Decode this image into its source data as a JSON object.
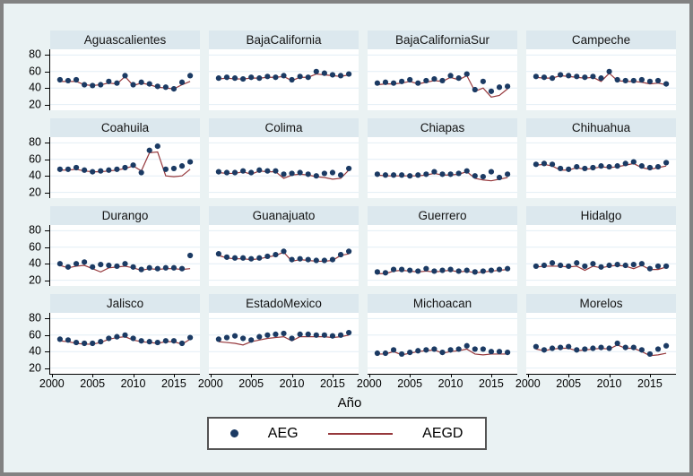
{
  "figure": {
    "xlabel": "Año",
    "legend": {
      "aeg_label": "AEG",
      "aegd_label": "AEGD"
    },
    "colors": {
      "background": "#eaf2f3",
      "title_band": "#dce8ee",
      "plot_bg": "#ffffff",
      "grid": "#e2eef5",
      "dot": "#1b3a63",
      "line": "#96383c",
      "axis": "#000000",
      "border": "#828282"
    }
  },
  "chart_data": {
    "type": "scatter",
    "layout": "4x4-small-multiples",
    "title": "",
    "xlabel": "Año",
    "ylabel": "",
    "legend": [
      "AEG",
      "AEGD"
    ],
    "legend_position": "bottom",
    "grid": true,
    "x": [
      2001,
      2002,
      2003,
      2004,
      2005,
      2006,
      2007,
      2008,
      2009,
      2010,
      2011,
      2012,
      2013,
      2014,
      2015,
      2016,
      2017
    ],
    "x_ticks": [
      2000,
      2005,
      2010,
      2015
    ],
    "y_ticks": [
      20,
      40,
      60,
      80
    ],
    "xlim": [
      1999.8,
      2018.2
    ],
    "ylim": [
      13,
      87
    ],
    "panels": [
      {
        "title": "Aguascalientes",
        "AEG": [
          50,
          49,
          50,
          44,
          43,
          44,
          48,
          46,
          55,
          44,
          47,
          45,
          42,
          41,
          39,
          47,
          55
        ],
        "AEGD": [
          48,
          48,
          48,
          44,
          43,
          44,
          46,
          45,
          54,
          43,
          46,
          44,
          41,
          40,
          39,
          44,
          48
        ]
      },
      {
        "title": "BajaCalifornia",
        "AEG": [
          52,
          53,
          52,
          51,
          53,
          52,
          54,
          53,
          55,
          50,
          54,
          53,
          60,
          58,
          56,
          55,
          57
        ],
        "AEGD": [
          51,
          52,
          51,
          51,
          52,
          52,
          53,
          53,
          54,
          49,
          53,
          53,
          57,
          56,
          55,
          54,
          56
        ]
      },
      {
        "title": "BajaCaliforniaSur",
        "AEG": [
          46,
          47,
          46,
          48,
          50,
          46,
          49,
          51,
          49,
          55,
          52,
          57,
          38,
          48,
          36,
          41,
          42
        ],
        "AEGD": [
          44,
          45,
          45,
          46,
          48,
          45,
          47,
          49,
          48,
          53,
          50,
          55,
          36,
          40,
          29,
          31,
          39
        ]
      },
      {
        "title": "Campeche",
        "AEG": [
          54,
          53,
          52,
          56,
          55,
          54,
          53,
          54,
          52,
          60,
          50,
          49,
          49,
          50,
          48,
          49,
          45
        ],
        "AEGD": [
          53,
          52,
          52,
          55,
          54,
          53,
          52,
          53,
          48,
          58,
          49,
          48,
          48,
          47,
          45,
          46,
          44
        ]
      },
      {
        "title": "Coahuila",
        "AEG": [
          48,
          48,
          50,
          47,
          45,
          46,
          47,
          48,
          50,
          53,
          44,
          71,
          76,
          48,
          49,
          52,
          57
        ],
        "AEGD": [
          47,
          47,
          48,
          46,
          45,
          45,
          46,
          47,
          49,
          52,
          46,
          68,
          69,
          40,
          39,
          40,
          48
        ]
      },
      {
        "title": "Colima",
        "AEG": [
          45,
          44,
          44,
          46,
          44,
          47,
          46,
          46,
          42,
          43,
          44,
          42,
          40,
          43,
          44,
          41,
          49
        ],
        "AEGD": [
          44,
          43,
          43,
          45,
          42,
          46,
          45,
          45,
          37,
          41,
          42,
          41,
          39,
          38,
          36,
          37,
          47
        ]
      },
      {
        "title": "Chiapas",
        "AEG": [
          42,
          41,
          41,
          41,
          40,
          41,
          42,
          45,
          42,
          42,
          43,
          46,
          40,
          39,
          45,
          38,
          42
        ],
        "AEGD": [
          41,
          40,
          40,
          40,
          40,
          40,
          41,
          43,
          41,
          41,
          42,
          45,
          37,
          35,
          34,
          36,
          38
        ]
      },
      {
        "title": "Chihuahua",
        "AEG": [
          54,
          55,
          54,
          49,
          48,
          51,
          49,
          50,
          52,
          51,
          52,
          55,
          57,
          52,
          50,
          51,
          56
        ],
        "AEGD": [
          53,
          54,
          52,
          47,
          47,
          50,
          48,
          49,
          51,
          50,
          51,
          53,
          55,
          50,
          48,
          50,
          52
        ]
      },
      {
        "title": "Durango",
        "AEG": [
          40,
          36,
          40,
          42,
          36,
          39,
          38,
          37,
          40,
          36,
          33,
          35,
          34,
          35,
          35,
          34,
          50
        ],
        "AEGD": [
          38,
          35,
          37,
          38,
          34,
          30,
          35,
          36,
          37,
          35,
          32,
          34,
          33,
          34,
          34,
          33,
          34
        ]
      },
      {
        "title": "Guanajuato",
        "AEG": [
          52,
          48,
          47,
          47,
          46,
          47,
          49,
          51,
          55,
          45,
          46,
          45,
          44,
          44,
          45,
          51,
          55
        ],
        "AEGD": [
          50,
          47,
          46,
          46,
          45,
          46,
          48,
          50,
          54,
          43,
          45,
          44,
          43,
          43,
          44,
          50,
          52
        ]
      },
      {
        "title": "Guerrero",
        "AEG": [
          30,
          29,
          33,
          33,
          32,
          31,
          34,
          31,
          32,
          33,
          31,
          32,
          30,
          31,
          32,
          33,
          34
        ],
        "AEGD": [
          28,
          28,
          31,
          32,
          31,
          30,
          31,
          30,
          31,
          32,
          30,
          31,
          29,
          30,
          31,
          32,
          33
        ]
      },
      {
        "title": "Hidalgo",
        "AEG": [
          37,
          38,
          41,
          38,
          37,
          41,
          37,
          40,
          36,
          38,
          39,
          38,
          39,
          40,
          34,
          37,
          37
        ],
        "AEGD": [
          36,
          37,
          37,
          37,
          36,
          37,
          32,
          37,
          35,
          37,
          38,
          37,
          34,
          38,
          33,
          33,
          36
        ]
      },
      {
        "title": "Jalisco",
        "AEG": [
          55,
          54,
          51,
          50,
          50,
          52,
          56,
          58,
          60,
          56,
          53,
          52,
          51,
          53,
          53,
          50,
          57
        ],
        "AEGD": [
          53,
          52,
          50,
          49,
          49,
          51,
          55,
          57,
          58,
          54,
          52,
          51,
          50,
          52,
          52,
          49,
          55
        ]
      },
      {
        "title": "EstadoMexico",
        "AEG": [
          55,
          57,
          59,
          56,
          54,
          58,
          60,
          61,
          62,
          56,
          61,
          61,
          60,
          60,
          59,
          60,
          63
        ],
        "AEGD": [
          52,
          51,
          50,
          48,
          52,
          54,
          56,
          57,
          58,
          53,
          58,
          58,
          58,
          58,
          57,
          58,
          60
        ]
      },
      {
        "title": "Michoacan",
        "AEG": [
          38,
          38,
          42,
          37,
          39,
          41,
          42,
          43,
          39,
          42,
          43,
          47,
          43,
          43,
          40,
          40,
          39
        ],
        "AEGD": [
          37,
          37,
          40,
          36,
          38,
          40,
          41,
          42,
          38,
          40,
          41,
          43,
          37,
          36,
          37,
          37,
          37
        ]
      },
      {
        "title": "Morelos",
        "AEG": [
          46,
          42,
          44,
          45,
          46,
          42,
          43,
          44,
          45,
          44,
          50,
          45,
          45,
          42,
          37,
          43,
          47
        ],
        "AEGD": [
          43,
          41,
          43,
          44,
          44,
          41,
          42,
          43,
          44,
          43,
          48,
          44,
          44,
          40,
          35,
          36,
          38
        ]
      }
    ]
  }
}
